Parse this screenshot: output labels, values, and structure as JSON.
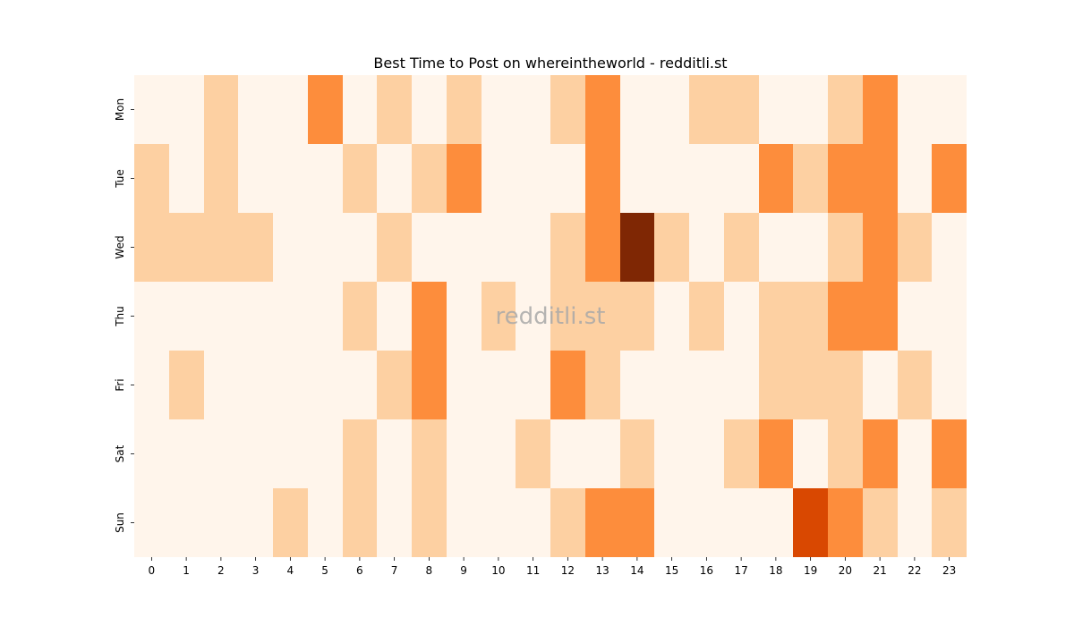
{
  "chart_data": {
    "type": "heatmap",
    "title": "Best Time to Post on whereintheworld - redditli.st",
    "xlabel": "",
    "ylabel": "",
    "x_categories": [
      "0",
      "1",
      "2",
      "3",
      "4",
      "5",
      "6",
      "7",
      "8",
      "9",
      "10",
      "11",
      "12",
      "13",
      "14",
      "15",
      "16",
      "17",
      "18",
      "19",
      "20",
      "21",
      "22",
      "23"
    ],
    "y_categories": [
      "Mon",
      "Tue",
      "Wed",
      "Thu",
      "Fri",
      "Sat",
      "Sun"
    ],
    "values": [
      [
        0,
        0,
        1,
        0,
        0,
        2,
        0,
        1,
        0,
        1,
        0,
        0,
        1,
        2,
        0,
        0,
        1,
        1,
        0,
        0,
        1,
        2,
        0,
        0
      ],
      [
        1,
        0,
        1,
        0,
        0,
        0,
        1,
        0,
        1,
        2,
        0,
        0,
        0,
        2,
        0,
        0,
        0,
        0,
        2,
        1,
        2,
        2,
        0,
        2
      ],
      [
        1,
        1,
        1,
        1,
        0,
        0,
        0,
        1,
        0,
        0,
        0,
        0,
        1,
        2,
        4,
        1,
        0,
        1,
        0,
        0,
        1,
        2,
        1,
        0
      ],
      [
        0,
        0,
        0,
        0,
        0,
        0,
        1,
        0,
        2,
        0,
        1,
        0,
        1,
        1,
        1,
        0,
        1,
        0,
        1,
        1,
        2,
        2,
        0,
        0
      ],
      [
        0,
        1,
        0,
        0,
        0,
        0,
        0,
        1,
        2,
        0,
        0,
        0,
        2,
        1,
        0,
        0,
        0,
        0,
        1,
        1,
        1,
        0,
        1,
        0
      ],
      [
        0,
        0,
        0,
        0,
        0,
        0,
        1,
        0,
        1,
        0,
        0,
        1,
        0,
        0,
        1,
        0,
        0,
        1,
        2,
        0,
        1,
        2,
        0,
        2
      ],
      [
        0,
        0,
        0,
        0,
        1,
        0,
        1,
        0,
        1,
        0,
        0,
        0,
        1,
        2,
        2,
        0,
        0,
        0,
        0,
        3,
        2,
        1,
        0,
        1
      ]
    ],
    "value_range": [
      0,
      4
    ],
    "colormap": [
      "#fff5eb",
      "#fdd0a2",
      "#fd8d3c",
      "#d94801",
      "#7f2704"
    ],
    "grid": false,
    "colorbar": false
  },
  "watermark": "redditli.st"
}
